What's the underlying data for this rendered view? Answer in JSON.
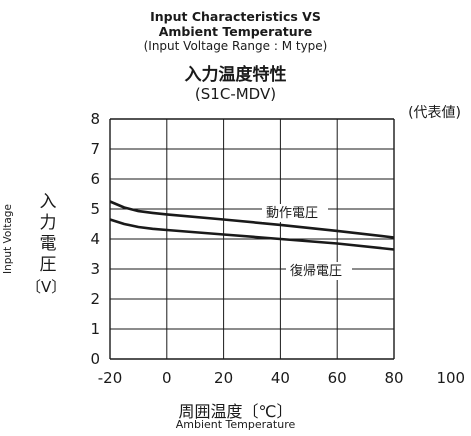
{
  "titles": {
    "en_line1": "Input Characteristics VS",
    "en_line2": "Ambient Temperature",
    "en_line3": "(Input Voltage Range : M type)",
    "jp": "入力温度特性",
    "model": "(S1C-MDV)",
    "typical": "(代表値)"
  },
  "chart_data": {
    "type": "line",
    "xlabel": "周囲温度〔℃〕",
    "xlabel_en": "Ambient Temperature",
    "ylabel": "入力電圧",
    "ylabel_unit": "〔V〕",
    "ylabel_en": "Input Voltage",
    "xlim": [
      -20,
      100
    ],
    "ylim": [
      0,
      8
    ],
    "xticks": [
      -20,
      0,
      20,
      40,
      60,
      80,
      100
    ],
    "yticks": [
      0,
      1,
      2,
      3,
      4,
      5,
      6,
      7,
      8
    ],
    "grid": true,
    "series": [
      {
        "name": "動作電圧",
        "x": [
          -20,
          -15,
          -10,
          -5,
          0,
          20,
          40,
          60,
          80
        ],
        "y": [
          5.25,
          5.05,
          4.93,
          4.87,
          4.82,
          4.65,
          4.47,
          4.27,
          4.05
        ]
      },
      {
        "name": "復帰電圧",
        "x": [
          -20,
          -15,
          -10,
          -5,
          0,
          20,
          40,
          60,
          80
        ],
        "y": [
          4.65,
          4.5,
          4.4,
          4.34,
          4.3,
          4.15,
          4.0,
          3.85,
          3.65
        ]
      }
    ]
  }
}
